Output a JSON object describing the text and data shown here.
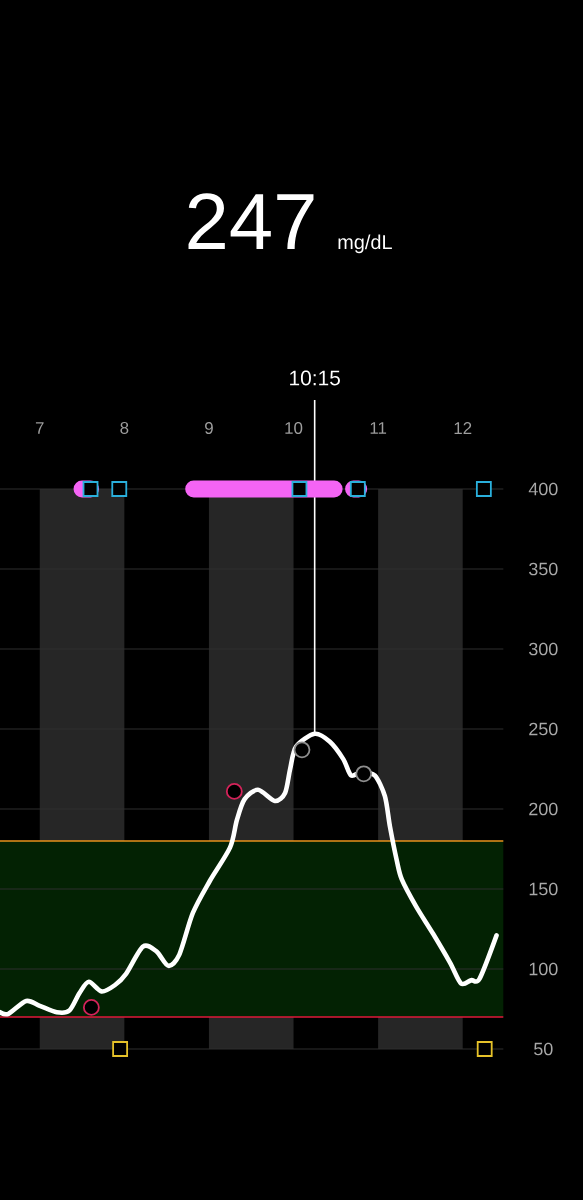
{
  "chart_data": {
    "type": "line",
    "title": "247",
    "subtitle": "mg/dL",
    "xlim": [
      6.53,
      12.48
    ],
    "xticks": [
      7,
      8,
      9,
      10,
      11,
      12
    ],
    "ylim": [
      50,
      400
    ],
    "yticks": [
      50,
      100,
      150,
      200,
      250,
      300,
      350,
      400
    ],
    "grid": "y",
    "series": [
      {
        "color": "#ffffff",
        "x": [
          6.53,
          6.63,
          6.84,
          7.0,
          7.2,
          7.35,
          7.47,
          7.58,
          7.73,
          7.89,
          8.02,
          8.22,
          8.38,
          8.52,
          8.65,
          8.81,
          9.01,
          9.25,
          9.33,
          9.42,
          9.58,
          9.78,
          9.9,
          9.96,
          10.03,
          10.25,
          10.43,
          10.59,
          10.68,
          10.8,
          10.96,
          11.08,
          11.14,
          11.22,
          11.28,
          11.45,
          11.65,
          11.85,
          11.98,
          12.1,
          12.2,
          12.4
        ],
        "values": [
          73,
          72,
          80,
          77,
          73,
          74,
          85,
          92,
          86,
          90,
          97,
          114,
          111,
          102,
          109,
          135,
          155,
          176,
          193,
          206,
          212,
          205,
          210,
          225,
          239,
          247,
          242,
          231,
          221,
          223,
          221,
          208,
          189,
          168,
          156,
          139,
          122,
          104,
          91,
          93,
          94,
          121
        ]
      },
      {
        "color": "#f464f4",
        "x": [
          7.5,
          7.6,
          7.65,
          8.82,
          10.48,
          10.6,
          10.71,
          10.77
        ],
        "values": [
          400,
          400,
          null,
          400,
          400,
          null,
          400,
          400
        ]
      },
      {
        "type": "scatter",
        "marker": "square",
        "color": "#2ab0dc",
        "x": [
          7.6,
          7.94,
          10.07,
          10.76,
          12.25
        ],
        "values": [
          400,
          400,
          400,
          400,
          400
        ]
      },
      {
        "type": "scatter",
        "marker": "square",
        "color": "#e6c229",
        "x": [
          7.95,
          12.26
        ],
        "values": [
          50,
          50
        ]
      },
      {
        "type": "scatter",
        "marker": "circle",
        "color": "#d4235a",
        "x": [
          7.61,
          9.3
        ],
        "values": [
          76,
          211
        ]
      },
      {
        "type": "scatter",
        "marker": "circle",
        "color": "#8e8e8e",
        "x": [
          10.1,
          10.83
        ],
        "values": [
          237,
          222
        ]
      }
    ],
    "bands": [
      {
        "axis": "x",
        "from": 7,
        "to": 8,
        "color": "#262626"
      },
      {
        "axis": "x",
        "from": 9,
        "to": 10,
        "color": "#262626"
      },
      {
        "axis": "x",
        "from": 11,
        "to": 12,
        "color": "#262626"
      },
      {
        "axis": "y",
        "from": 70,
        "to": 180,
        "color": "#032203"
      }
    ],
    "ref_lines": [
      {
        "axis": "x",
        "value": 10.25,
        "label": "10:15",
        "color": "#ffffff"
      },
      {
        "axis": "y",
        "value": 180,
        "color": "#e8921c"
      },
      {
        "axis": "y",
        "value": 70,
        "color": "#e0183a"
      }
    ]
  }
}
